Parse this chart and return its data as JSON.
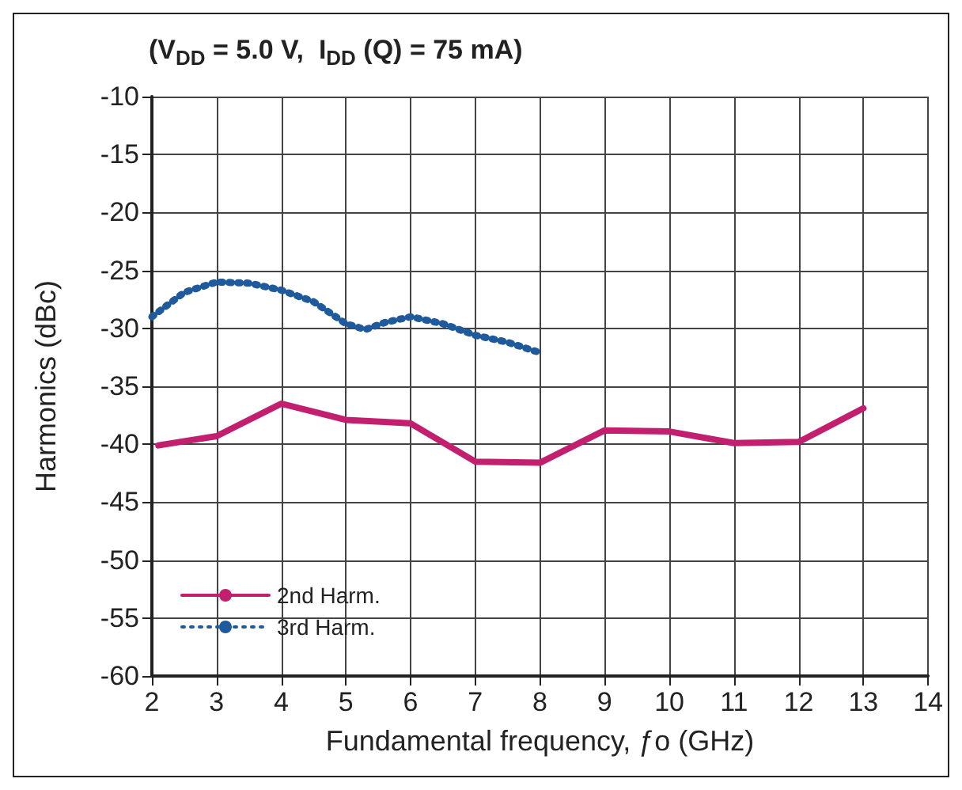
{
  "chart_data": {
    "type": "line",
    "title": "(V$_{DD}$ = 5.0 V,  I$_{DD}$ (Q) = 75 mA)",
    "xlabel": "Fundamental frequency, ƒo (GHz)",
    "ylabel": "Harmonics (dBc)",
    "xlim": [
      2,
      14
    ],
    "xticks": [
      2,
      3,
      4,
      5,
      6,
      7,
      8,
      9,
      10,
      11,
      12,
      13,
      14
    ],
    "ylim": [
      -60,
      -10
    ],
    "yticks": [
      -60,
      -55,
      -50,
      -45,
      -40,
      -35,
      -30,
      -25,
      -20,
      -15,
      -10
    ],
    "grid": true,
    "legend": "bottom left",
    "marker": "none",
    "series": [
      {
        "name": "2nd Harm.",
        "color": "#c2206f",
        "line_style": "solid",
        "x": [
          2.1,
          3,
          4,
          5,
          6,
          7,
          8,
          9,
          10,
          11,
          12,
          13
        ],
        "values": [
          -40.1,
          -39.3,
          -36.5,
          -37.9,
          -38.2,
          -41.5,
          -41.6,
          -38.8,
          -38.9,
          -39.9,
          -39.8,
          -36.9
        ]
      },
      {
        "name": "3rd Harm.",
        "color": "#1f5a9c",
        "line_style": "dotted",
        "x": [
          2,
          2.5,
          3,
          3.5,
          4,
          4.5,
          5,
          5.3,
          5.6,
          6,
          6.5,
          7,
          7.5,
          8
        ],
        "values": [
          -29.0,
          -26.9,
          -26.0,
          -26.1,
          -26.7,
          -27.7,
          -29.6,
          -30.1,
          -29.5,
          -29.0,
          -29.6,
          -30.6,
          -31.2,
          -32.1
        ]
      }
    ]
  }
}
